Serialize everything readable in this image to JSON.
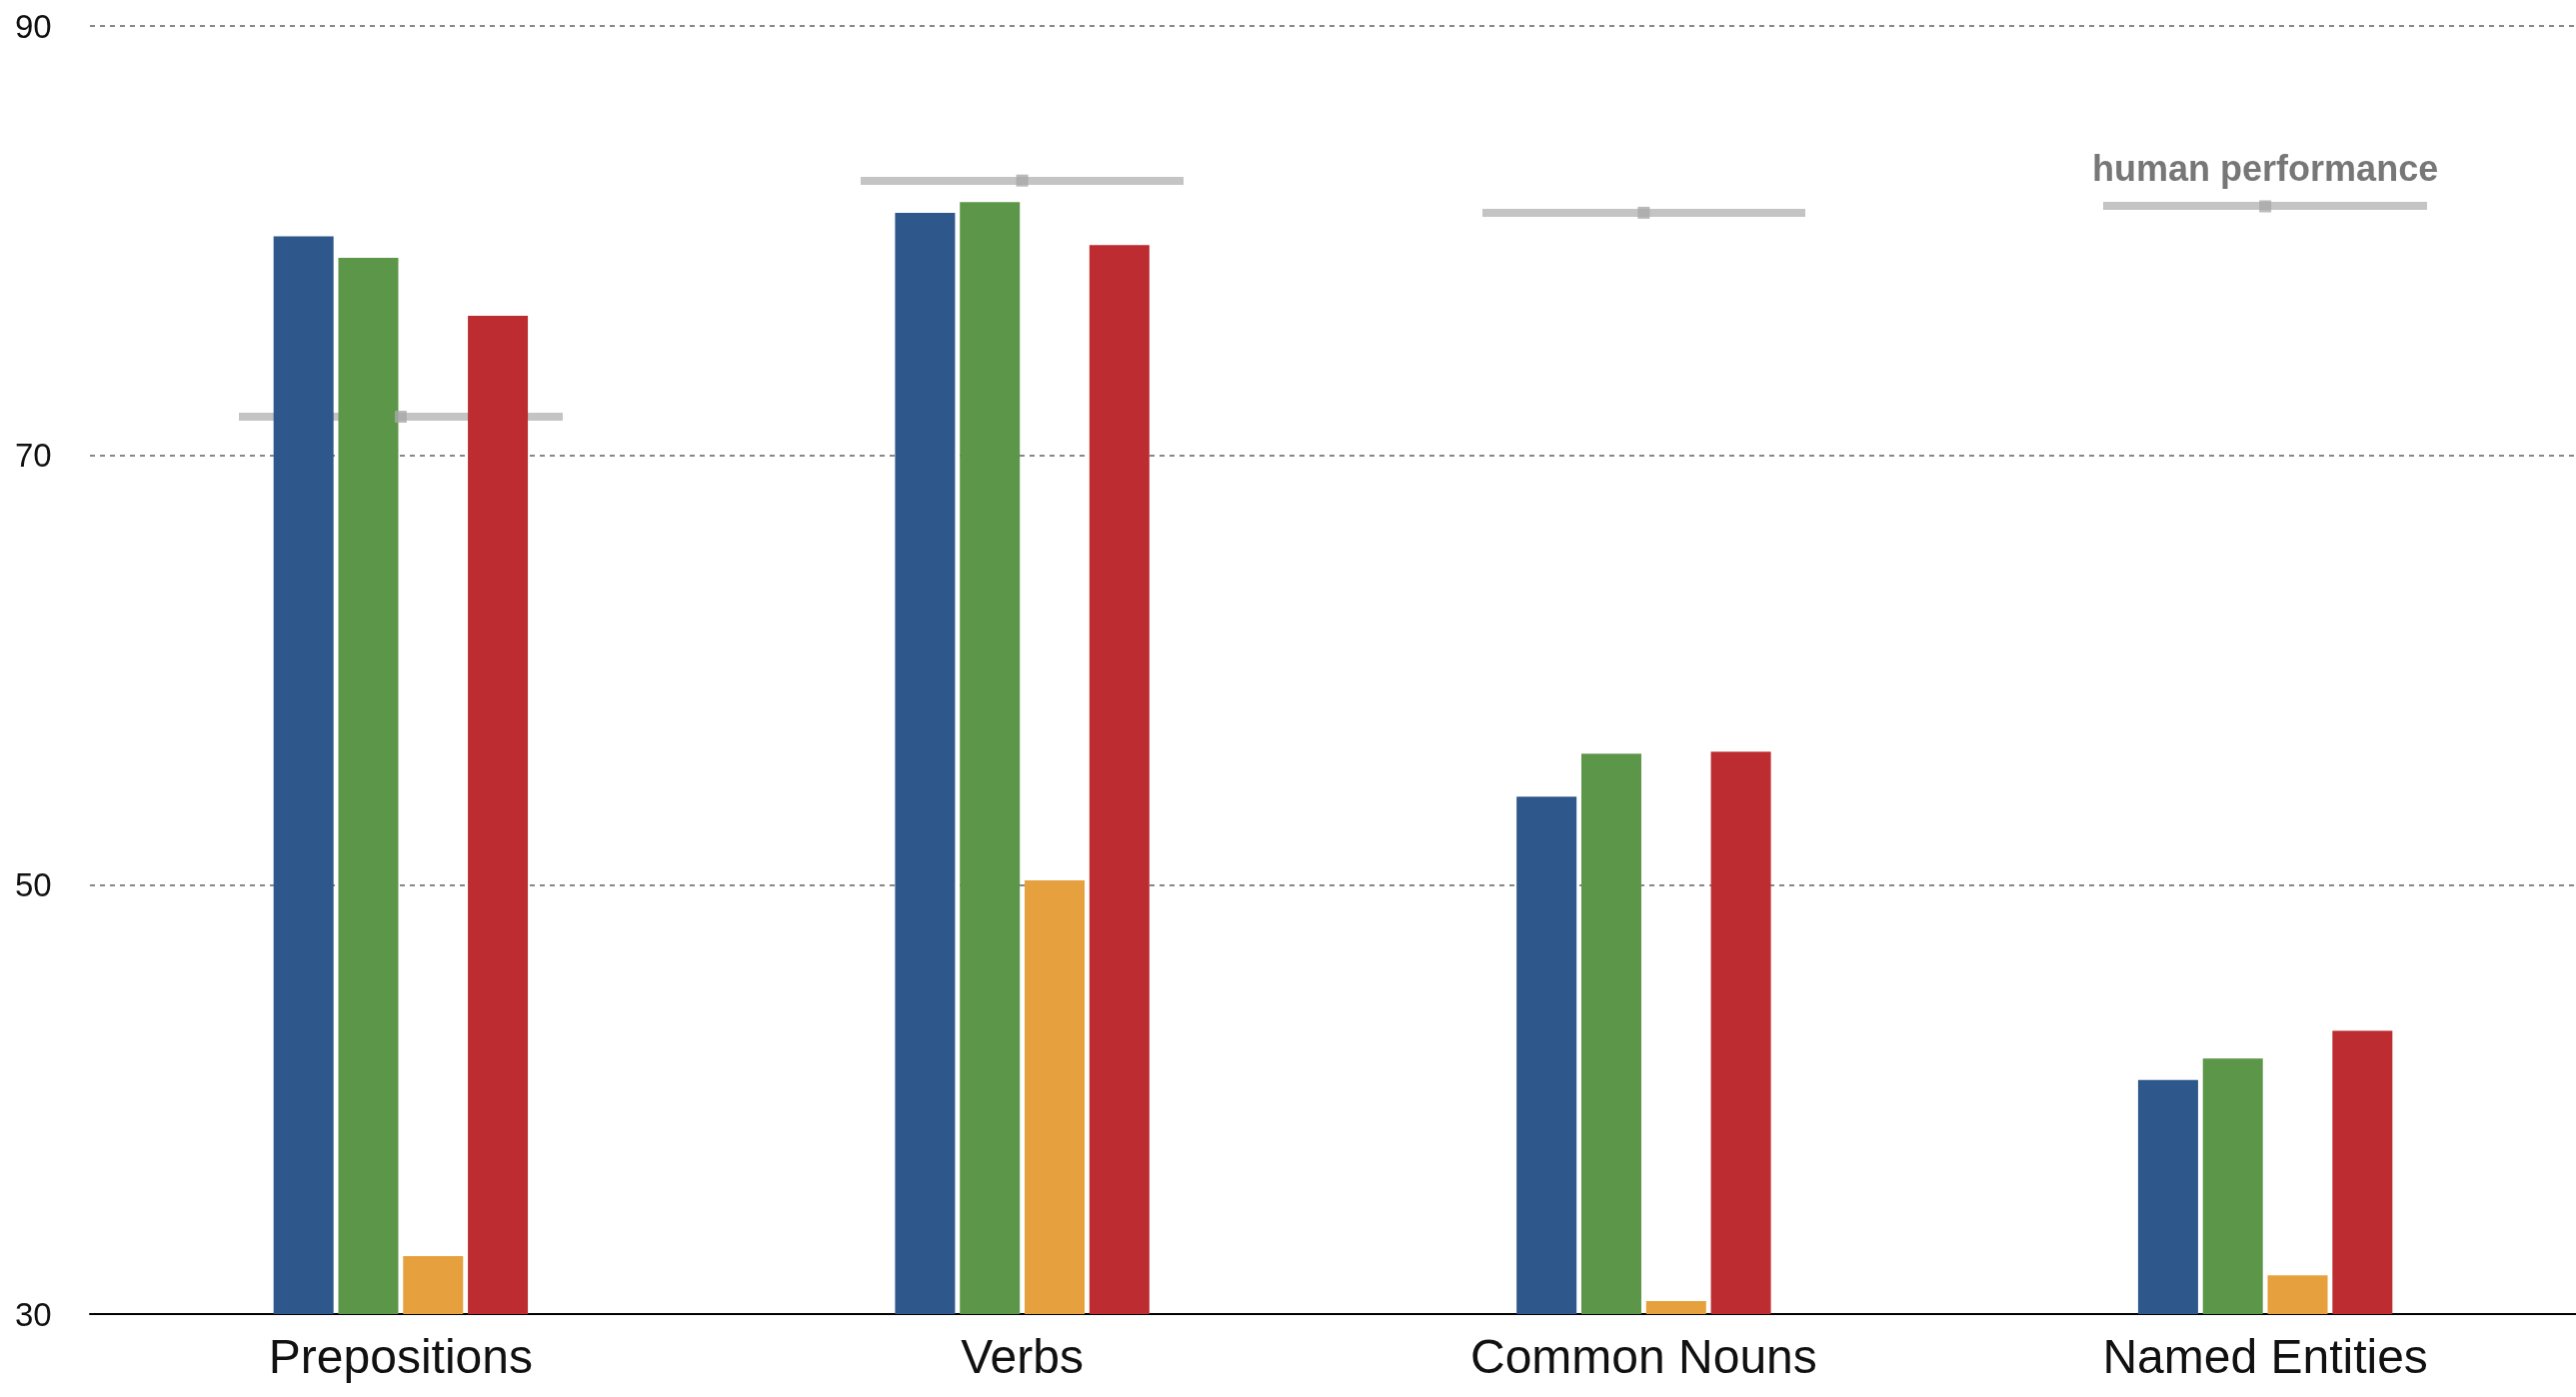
{
  "chart_data": {
    "type": "bar",
    "categories": [
      "Prepositions",
      "Verbs",
      "Common Nouns",
      "Named Entities"
    ],
    "series": [
      {
        "color": "#2e578b",
        "values": [
          80.2,
          81.3,
          54.1,
          40.9
        ]
      },
      {
        "color": "#5c9649",
        "values": [
          79.2,
          81.8,
          56.1,
          41.9
        ]
      },
      {
        "color": "#e6a03d",
        "values": [
          32.7,
          50.2,
          30.6,
          31.8
        ]
      },
      {
        "color": "#bc2c30",
        "values": [
          76.5,
          79.8,
          56.2,
          43.2
        ]
      },
      {
        "type": "scatter",
        "name": "human performance",
        "color": "#a9a9a9",
        "x": [
          "Prepositions",
          "Verbs",
          "Common Nouns",
          "Named Entities"
        ],
        "values": [
          71.8,
          82.8,
          81.3,
          81.6
        ]
      }
    ],
    "ylim": [
      30,
      90
    ],
    "yticks": [
      30,
      50,
      70,
      90
    ],
    "grid": "y",
    "legend": false
  }
}
